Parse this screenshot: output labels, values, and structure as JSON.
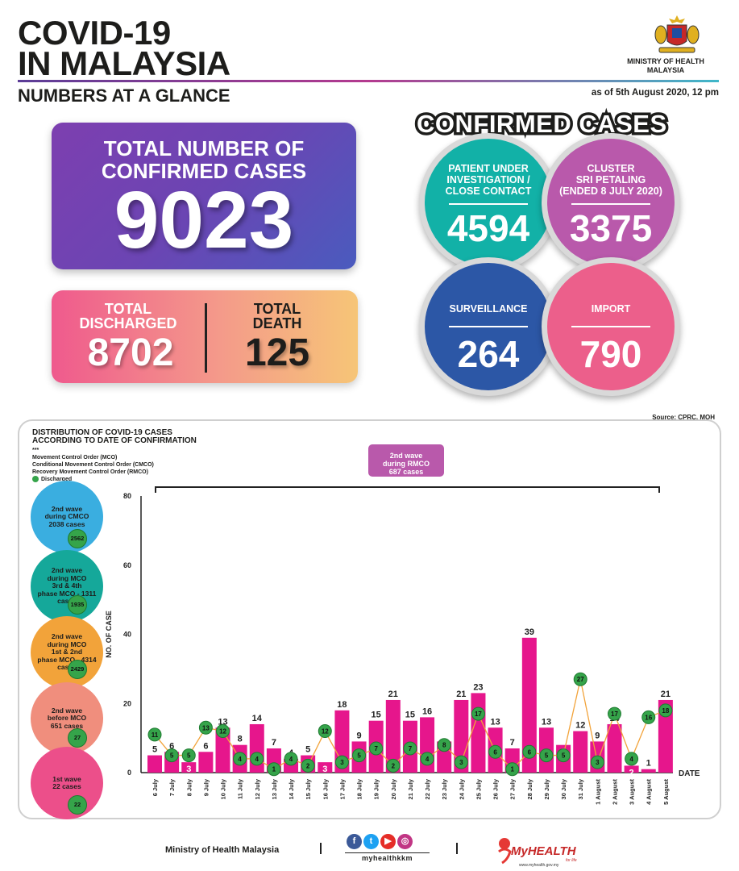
{
  "header": {
    "title_line1": "COVID-19",
    "title_line2": "IN MALAYSIA",
    "subtitle": "NUMBERS AT A GLANCE",
    "as_of": "as of 5th August 2020, 12 pm",
    "ministry_line1": "MINISTRY OF HEALTH",
    "ministry_line2": "MALAYSIA"
  },
  "total": {
    "label_line1": "TOTAL NUMBER OF",
    "label_line2": "CONFIRMED CASES",
    "value": "9023"
  },
  "discharged": {
    "label_line1": "TOTAL",
    "label_line2": "DISCHARGED",
    "value": "8702"
  },
  "death": {
    "label_line1": "TOTAL",
    "label_line2": "DEATH",
    "value": "125"
  },
  "confirmed": {
    "heading": "CONFIRMED CASES",
    "puicc": {
      "label_line1": "PATIENT UNDER",
      "label_line2": "INVESTIGATION /",
      "label_line3": "CLOSE CONTACT",
      "value": "4594"
    },
    "cluster": {
      "label_line1": "CLUSTER",
      "label_line2": "SRI PETALING",
      "label_line3": "(ENDED 8 JULY 2020)",
      "value": "3375"
    },
    "surveillance": {
      "label": "SURVEILLANCE",
      "value": "264"
    },
    "import": {
      "label": "IMPORT",
      "value": "790"
    }
  },
  "source": "Source: CPRC, MOH",
  "chart_panel": {
    "title_line1": "DISTRIBUTION OF COVID-19 CASES",
    "title_line2": "ACCORDING TO DATE OF CONFIRMATION",
    "legend_stars": "***",
    "legend_mco": "Movement Control Order (MCO)",
    "legend_cmco": "Conditional Movement Control Order (CMCO)",
    "legend_rmco": "Recovery Movement Control Order (RMCO)",
    "legend_discharged": "Discharged",
    "rmco_box_line1": "2nd wave",
    "rmco_box_line2": "during RMCO",
    "rmco_box_line3": "687 cases"
  },
  "waves": [
    {
      "line1": "2nd wave",
      "line2": "during CMCO",
      "line3": "2038 cases",
      "line4": "",
      "discharged": "2562",
      "color": "#3aaee0"
    },
    {
      "line1": "2nd wave",
      "line2": "during MCO",
      "line3": "3rd & 4th",
      "line4": "phase MCO - 1311 cases",
      "discharged": "1935",
      "color": "#15a89a"
    },
    {
      "line1": "2nd wave",
      "line2": "during MCO",
      "line3": "1st & 2nd",
      "line4": "phase MCO - 4314 cases",
      "discharged": "2429",
      "color": "#f2a33a"
    },
    {
      "line1": "2nd wave",
      "line2": "before MCO",
      "line3": "651 cases",
      "line4": "",
      "discharged": "27",
      "color": "#f08e7d"
    },
    {
      "line1": "1st wave",
      "line2": "22 cases",
      "line3": "",
      "line4": "",
      "discharged": "22",
      "color": "#ec4f8a"
    }
  ],
  "chart_data": {
    "type": "bar",
    "xlabel": "DATE",
    "ylabel": "NO. OF CASE",
    "ylim": [
      0,
      80
    ],
    "yticks": [
      0,
      20,
      40,
      60,
      80
    ],
    "categories": [
      "6 July",
      "7 July",
      "8 July",
      "9 July",
      "10 July",
      "11 July",
      "12 July",
      "13 July",
      "14 July",
      "15 July",
      "16 July",
      "17 July",
      "18 July",
      "19 July",
      "20 July",
      "21 July",
      "22 July",
      "23 July",
      "24 July",
      "25 July",
      "26 July",
      "27 July",
      "28 July",
      "29 July",
      "30 July",
      "31 July",
      "1 August",
      "2 August",
      "3 August",
      "4 August",
      "5 August"
    ],
    "series": [
      {
        "kind": "bar",
        "values": [
          5,
          6,
          3,
          6,
          13,
          8,
          14,
          7,
          4,
          5,
          3,
          18,
          9,
          15,
          21,
          15,
          16,
          9,
          21,
          23,
          13,
          7,
          39,
          13,
          8,
          12,
          9,
          14,
          2,
          1,
          21
        ]
      },
      {
        "name": "Discharged",
        "kind": "line",
        "values": [
          11,
          5,
          5,
          13,
          12,
          4,
          4,
          1,
          4,
          2,
          12,
          3,
          5,
          7,
          2,
          7,
          4,
          8,
          3,
          17,
          6,
          1,
          6,
          5,
          5,
          27,
          3,
          17,
          4,
          16,
          18
        ]
      }
    ],
    "colors": {
      "bar": "#e6168c",
      "line": "#f2a33a",
      "marker": "#35a44a"
    }
  },
  "footer": {
    "moh": "Ministry of Health Malaysia",
    "social_handle": "myhealthkkm",
    "brand": "MyHEALTH",
    "brand_tag": "for life",
    "brand_url": "www.myhealth.gov.my"
  }
}
